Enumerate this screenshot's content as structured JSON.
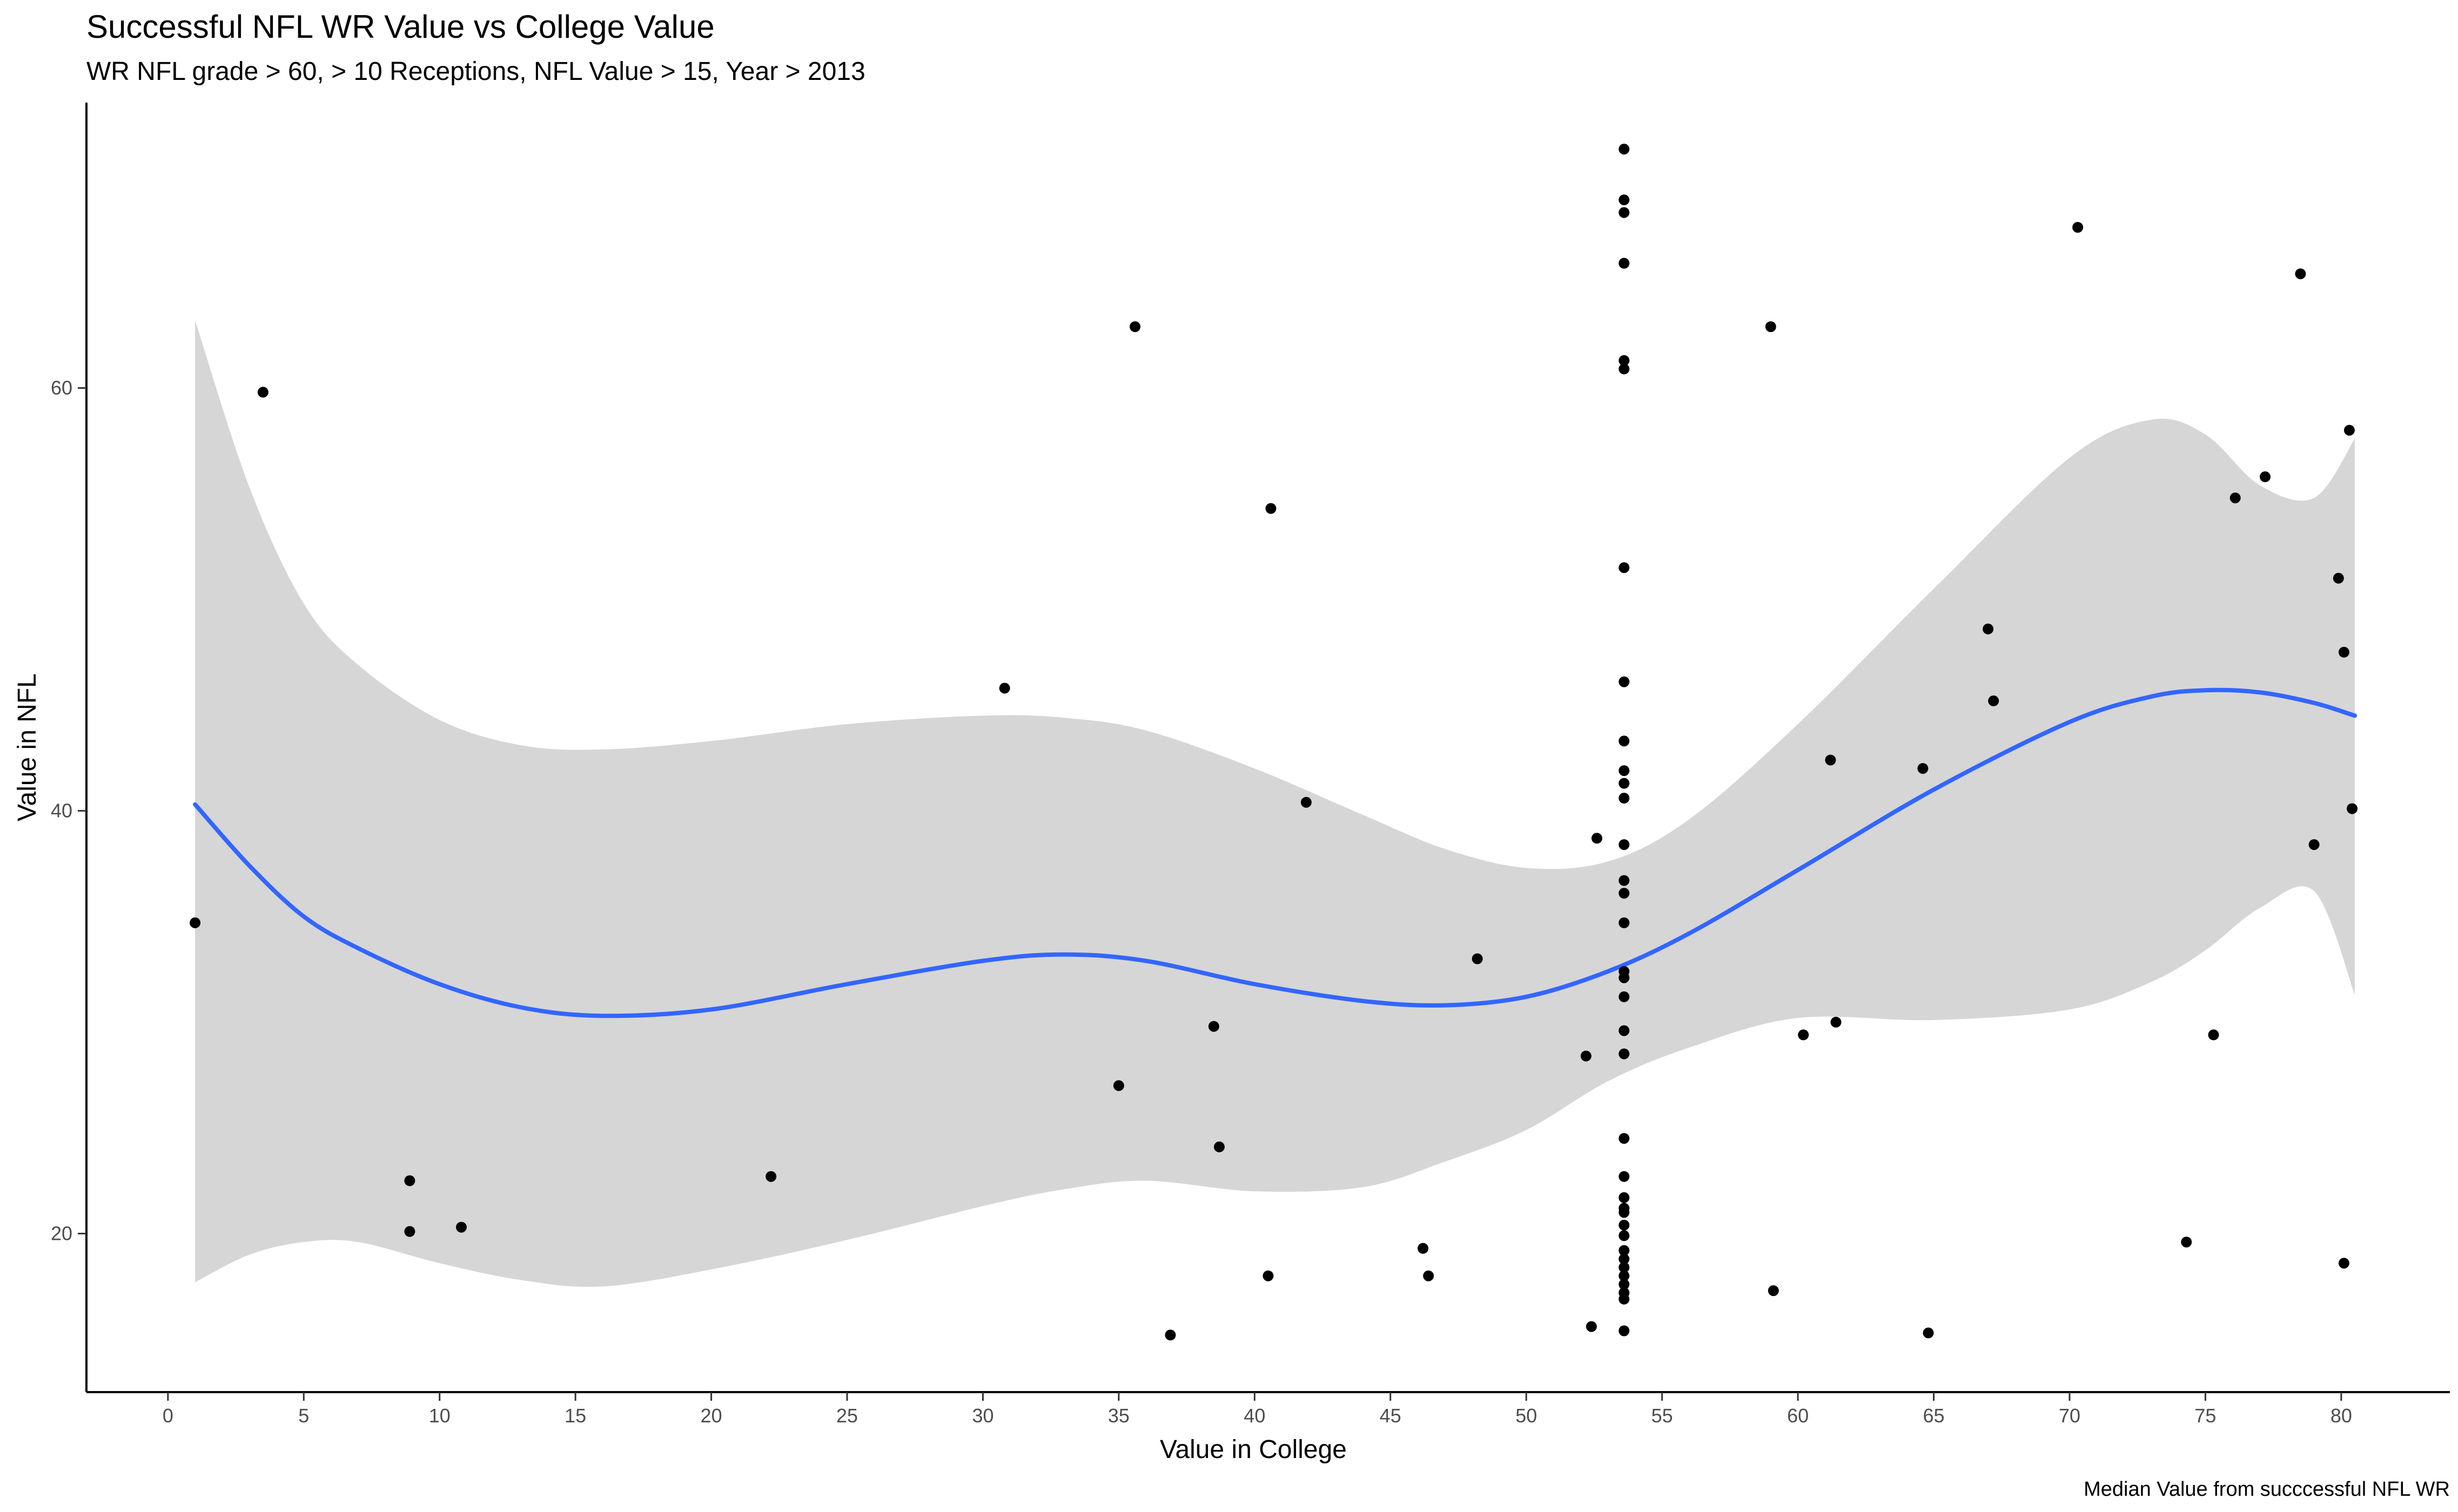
{
  "chart_data": {
    "type": "scatter",
    "title": "Successful NFL WR Value vs College Value",
    "subtitle": "WR NFL grade > 60, > 10 Receptions, NFL Value > 15, Year > 2013",
    "xlabel": "Value in College",
    "ylabel": "Value in NFL",
    "caption": "Median Value from succcessful NFL WR",
    "xlim": [
      -3,
      84
    ],
    "ylim": [
      12.5,
      73.5
    ],
    "x_ticks": [
      0,
      5,
      10,
      15,
      20,
      25,
      30,
      35,
      40,
      45,
      50,
      55,
      60,
      65,
      70,
      75,
      80
    ],
    "y_ticks": [
      20,
      40,
      60
    ],
    "grid": false,
    "colors": {
      "points": "#000000",
      "smooth_line": "#3366ff",
      "ribbon": "#d6d6d6"
    },
    "points": [
      [
        1.0,
        34.7
      ],
      [
        3.5,
        59.8
      ],
      [
        8.9,
        22.5
      ],
      [
        8.9,
        20.1
      ],
      [
        10.8,
        20.3
      ],
      [
        22.2,
        22.7
      ],
      [
        30.8,
        45.8
      ],
      [
        35.0,
        27.0
      ],
      [
        35.6,
        62.9
      ],
      [
        36.9,
        15.2
      ],
      [
        38.5,
        29.8
      ],
      [
        38.7,
        24.1
      ],
      [
        40.5,
        18.0
      ],
      [
        40.6,
        54.3
      ],
      [
        41.9,
        40.4
      ],
      [
        46.2,
        19.3
      ],
      [
        46.4,
        18.0
      ],
      [
        48.2,
        33.0
      ],
      [
        52.2,
        28.4
      ],
      [
        52.4,
        15.6
      ],
      [
        52.6,
        38.7
      ],
      [
        53.6,
        71.3
      ],
      [
        53.6,
        68.9
      ],
      [
        53.6,
        68.3
      ],
      [
        53.6,
        65.9
      ],
      [
        53.6,
        61.3
      ],
      [
        53.6,
        60.9
      ],
      [
        53.6,
        51.5
      ],
      [
        53.6,
        46.1
      ],
      [
        53.6,
        43.3
      ],
      [
        53.6,
        41.9
      ],
      [
        53.6,
        41.3
      ],
      [
        53.6,
        40.6
      ],
      [
        53.6,
        38.4
      ],
      [
        53.6,
        36.7
      ],
      [
        53.6,
        36.1
      ],
      [
        53.6,
        34.7
      ],
      [
        53.6,
        32.4
      ],
      [
        53.6,
        32.1
      ],
      [
        53.6,
        31.2
      ],
      [
        53.6,
        29.6
      ],
      [
        53.6,
        28.5
      ],
      [
        53.6,
        24.5
      ],
      [
        53.6,
        22.7
      ],
      [
        53.6,
        21.7
      ],
      [
        53.6,
        21.2
      ],
      [
        53.6,
        21.0
      ],
      [
        53.6,
        20.4
      ],
      [
        53.6,
        19.9
      ],
      [
        53.6,
        19.2
      ],
      [
        53.6,
        18.8
      ],
      [
        53.6,
        18.4
      ],
      [
        53.6,
        18.0
      ],
      [
        53.6,
        17.6
      ],
      [
        53.6,
        17.2
      ],
      [
        53.6,
        16.9
      ],
      [
        53.6,
        15.4
      ],
      [
        59.0,
        62.9
      ],
      [
        59.1,
        17.3
      ],
      [
        60.2,
        29.4
      ],
      [
        61.2,
        42.4
      ],
      [
        61.4,
        30.0
      ],
      [
        64.6,
        42.0
      ],
      [
        64.8,
        15.3
      ],
      [
        67.0,
        48.6
      ],
      [
        67.2,
        45.2
      ],
      [
        70.3,
        67.6
      ],
      [
        74.3,
        19.6
      ],
      [
        75.3,
        29.4
      ],
      [
        76.1,
        54.8
      ],
      [
        77.2,
        55.8
      ],
      [
        78.5,
        65.4
      ],
      [
        79.0,
        38.4
      ],
      [
        79.9,
        51.0
      ],
      [
        80.1,
        47.5
      ],
      [
        80.1,
        18.6
      ],
      [
        80.3,
        58.0
      ],
      [
        80.4,
        40.1
      ]
    ],
    "smooth": {
      "method": "loess",
      "x": [
        1,
        3,
        5,
        7,
        10,
        13,
        16,
        20,
        25,
        30,
        33,
        36,
        40,
        44,
        47,
        50,
        53,
        56,
        60,
        65,
        70,
        73,
        75,
        77,
        79,
        80.5
      ],
      "fit": [
        40.3,
        37.4,
        35.0,
        33.5,
        31.8,
        30.7,
        30.3,
        30.6,
        31.8,
        32.9,
        33.2,
        32.9,
        31.8,
        31.0,
        30.8,
        31.2,
        32.4,
        34.2,
        37.2,
        41.0,
        44.2,
        45.4,
        45.7,
        45.6,
        45.1,
        44.5
      ],
      "upper": [
        63.2,
        55.3,
        49.8,
        46.9,
        44.3,
        43.1,
        42.9,
        43.3,
        44.1,
        44.5,
        44.4,
        43.8,
        42.0,
        39.8,
        38.2,
        37.3,
        37.6,
        39.6,
        44.1,
        50.5,
        56.7,
        58.5,
        57.8,
        55.4,
        54.8,
        57.6
      ],
      "lower": [
        17.7,
        19.0,
        19.6,
        19.6,
        18.6,
        17.8,
        17.5,
        18.3,
        19.7,
        21.3,
        22.1,
        22.5,
        22.0,
        22.2,
        23.4,
        24.9,
        27.2,
        28.8,
        30.2,
        30.1,
        30.6,
        31.9,
        33.4,
        35.4,
        36.2,
        31.3
      ]
    }
  }
}
